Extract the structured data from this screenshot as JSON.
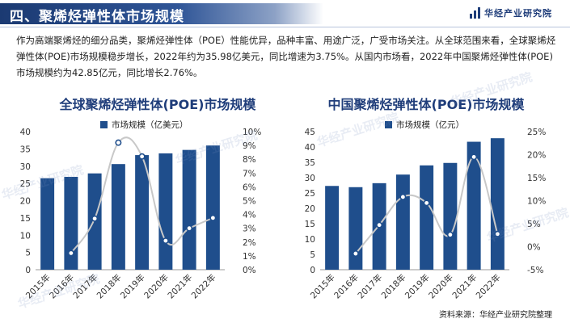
{
  "header": {
    "title": "四、聚烯烃弹性体市场规模",
    "brand": "华经产业研究院"
  },
  "intro": "作为高端聚烯烃的细分品类，聚烯烃弹性体（POE）性能优异，品种丰富、用途广泛，广受市场关注。从全球范围来看，全球聚烯烃弹性体(POE)市场规模稳步增长，2022年约为35.98亿美元，同比增速为3.75%。从国内市场看，2022年中国聚烯烃弹性体(POE)市场规模约为42.85亿元，同比增长2.76%。",
  "watermark": "华经产业研究院",
  "source": "资料来源：华经产业研究院整理",
  "colors": {
    "bar": "#1f4e8c",
    "line": "#c8c8c8",
    "marker_fill": "#ffffff",
    "marker_stroke": "#1f4e8c",
    "title": "#1f3d7a"
  },
  "chart_data": [
    {
      "type": "bar",
      "title": "全球聚烯烃弹性体(POE)市场规模",
      "legend": "市场规模（亿美元）",
      "categories": [
        "2015年",
        "2016年",
        "2017年",
        "2018年",
        "2019年",
        "2020年",
        "2021年",
        "2022年"
      ],
      "values": [
        26.5,
        26.9,
        27.9,
        30.6,
        33.2,
        33.7,
        34.7,
        35.98
      ],
      "ylim": [
        0,
        40
      ],
      "yticks": [
        "0",
        "5",
        "10",
        "15",
        "20",
        "25",
        "30",
        "35",
        "40"
      ],
      "line": {
        "x_start": 1,
        "values": [
          1.2,
          3.7,
          9.2,
          8.2,
          2.1,
          3.0,
          3.75
        ]
      },
      "y2lim": [
        0,
        10
      ],
      "y2ticks": [
        "0%",
        "1%",
        "2%",
        "3%",
        "4%",
        "5%",
        "6%",
        "7%",
        "8%",
        "9%",
        "10%"
      ]
    },
    {
      "type": "bar",
      "title": "中国聚烯烃弹性体(POE)市场规模",
      "legend": "市场规模（亿元）",
      "categories": [
        "2015年",
        "2016年",
        "2017年",
        "2018年",
        "2019年",
        "2020年",
        "2021年",
        "2022年"
      ],
      "values": [
        27.3,
        26.9,
        28.2,
        31.0,
        34.0,
        34.8,
        41.7,
        42.85
      ],
      "ylim": [
        0,
        45
      ],
      "yticks": [
        "0",
        "5",
        "10",
        "15",
        "20",
        "25",
        "30",
        "35",
        "40",
        "45"
      ],
      "line": {
        "x_start": 1,
        "values": [
          -1.5,
          4.7,
          10.8,
          9.5,
          2.6,
          19.5,
          2.76
        ]
      },
      "y2lim": [
        -5,
        25
      ],
      "y2ticks": [
        "-5%",
        "0%",
        "5%",
        "10%",
        "15%",
        "20%",
        "25%"
      ]
    }
  ]
}
